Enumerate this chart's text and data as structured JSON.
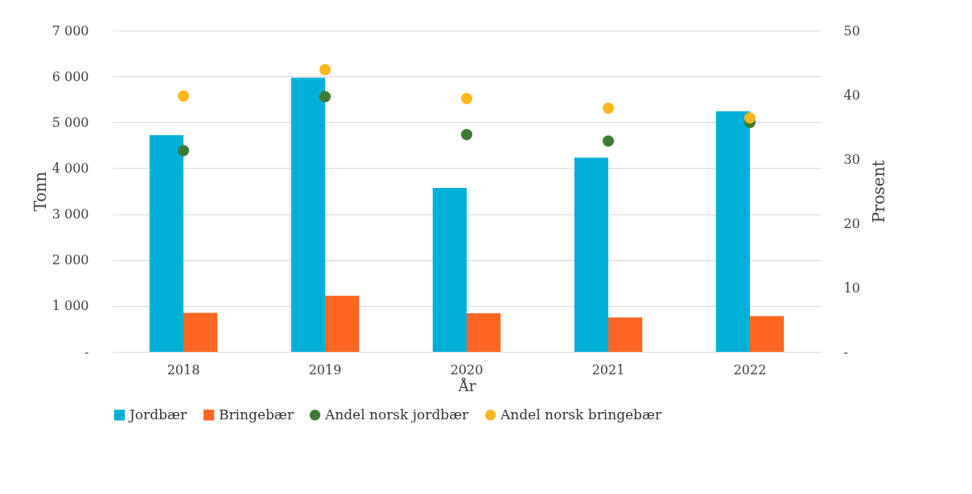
{
  "chart_data": {
    "type": "bar",
    "xlabel": "År",
    "ylabel": "Tonn",
    "y2label": "Prosent",
    "categories": [
      "2018",
      "2019",
      "2020",
      "2021",
      "2022"
    ],
    "series": [
      {
        "name": "Jordbær",
        "color": "#00b0d8",
        "values": [
          4720,
          5970,
          3570,
          4230,
          5240
        ]
      },
      {
        "name": "Bringebær",
        "color": "#ff6622",
        "values": [
          850,
          1220,
          840,
          750,
          780
        ]
      },
      {
        "name": "Andel norsk jordbær",
        "type": "scatter",
        "axis": "y2",
        "color": "#3f7a35",
        "values": [
          31.3,
          39.7,
          33.8,
          32.8,
          35.7
        ]
      },
      {
        "name": "Andel norsk bringebær",
        "type": "scatter",
        "axis": "y2",
        "color": "#ffb81c",
        "values": [
          39.8,
          43.9,
          39.4,
          37.9,
          36.4
        ]
      }
    ],
    "ylim": [
      0,
      7000
    ],
    "yticks": [
      {
        "value": 0,
        "label": "-"
      },
      {
        "value": 1000,
        "label": "1 000"
      },
      {
        "value": 2000,
        "label": "2 000"
      },
      {
        "value": 3000,
        "label": "3 000"
      },
      {
        "value": 4000,
        "label": "4 000"
      },
      {
        "value": 5000,
        "label": "5 000"
      },
      {
        "value": 6000,
        "label": "6 000"
      },
      {
        "value": 7000,
        "label": "7 000"
      }
    ],
    "y2lim": [
      0,
      50
    ],
    "y2ticks": [
      {
        "value": 0,
        "label": "-"
      },
      10,
      20,
      30,
      40,
      50
    ],
    "grid": "y",
    "legend": "bottom",
    "marker": "circle"
  }
}
